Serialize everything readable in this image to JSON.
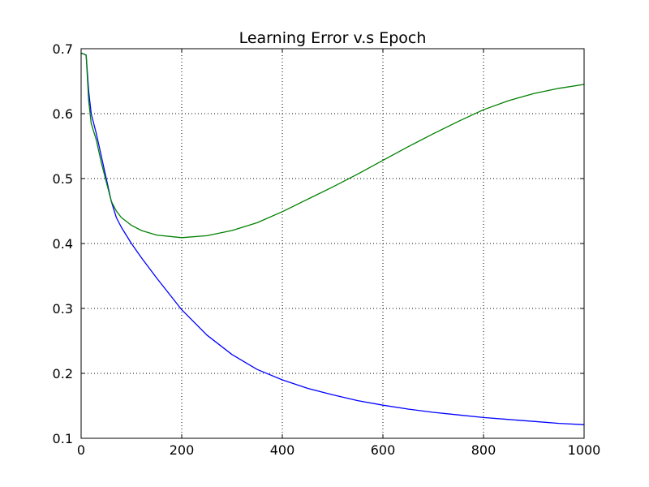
{
  "chart_data": {
    "type": "line",
    "title": "Learning Error v.s Epoch",
    "xlabel": "",
    "ylabel": "",
    "xlim": [
      0,
      1000
    ],
    "ylim": [
      0.1,
      0.7
    ],
    "xticks": [
      "0",
      "200",
      "400",
      "600",
      "800",
      "1000"
    ],
    "yticks": [
      "0.1",
      "0.2",
      "0.3",
      "0.4",
      "0.5",
      "0.6",
      "0.7"
    ],
    "grid": true,
    "legend": "none",
    "series": [
      {
        "color": "#0000ff",
        "x": [
          0,
          5,
          10,
          15,
          20,
          30,
          40,
          50,
          60,
          70,
          80,
          100,
          120,
          150,
          200,
          250,
          300,
          350,
          400,
          450,
          500,
          550,
          600,
          650,
          700,
          750,
          800,
          850,
          900,
          950,
          1000
        ],
        "y": [
          0.693,
          0.692,
          0.69,
          0.635,
          0.6,
          0.57,
          0.535,
          0.5,
          0.465,
          0.44,
          0.425,
          0.4,
          0.378,
          0.347,
          0.298,
          0.259,
          0.229,
          0.206,
          0.19,
          0.177,
          0.167,
          0.158,
          0.151,
          0.145,
          0.14,
          0.136,
          0.132,
          0.129,
          0.126,
          0.123,
          0.121
        ]
      },
      {
        "color": "#008000",
        "x": [
          0,
          5,
          10,
          15,
          20,
          30,
          40,
          50,
          60,
          70,
          80,
          100,
          120,
          150,
          200,
          250,
          300,
          350,
          400,
          450,
          500,
          550,
          600,
          650,
          700,
          750,
          800,
          850,
          900,
          950,
          1000
        ],
        "y": [
          0.693,
          0.692,
          0.69,
          0.62,
          0.585,
          0.56,
          0.525,
          0.495,
          0.465,
          0.45,
          0.44,
          0.428,
          0.42,
          0.413,
          0.409,
          0.412,
          0.42,
          0.432,
          0.449,
          0.468,
          0.487,
          0.507,
          0.528,
          0.549,
          0.569,
          0.588,
          0.606,
          0.62,
          0.631,
          0.639,
          0.645
        ]
      }
    ]
  }
}
